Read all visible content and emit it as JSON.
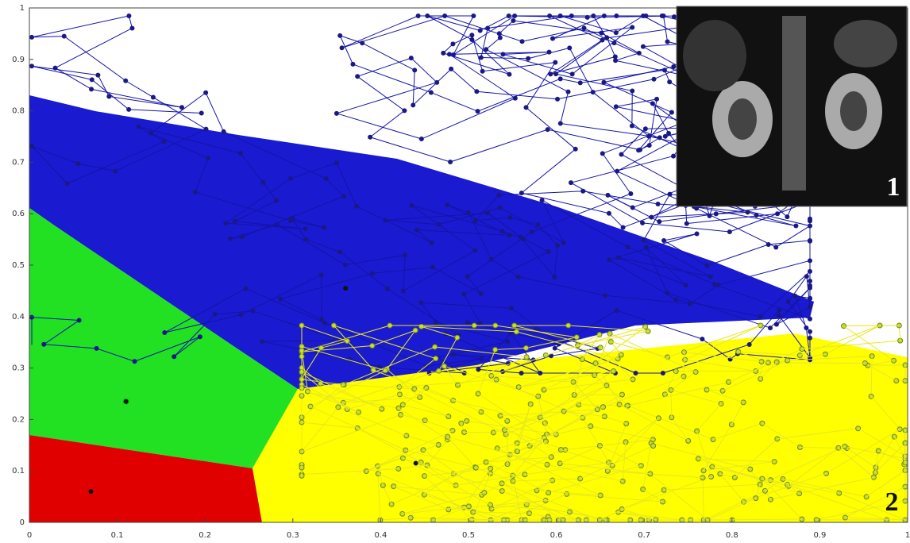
{
  "chart_data": {
    "type": "scatter",
    "xlim": [
      0,
      1
    ],
    "ylim": [
      0,
      1
    ],
    "xticks": [
      0,
      0.1,
      0.2,
      0.3,
      0.4,
      0.5,
      0.6,
      0.7,
      0.8,
      0.9,
      1
    ],
    "yticks": [
      0,
      0.1,
      0.2,
      0.3,
      0.4,
      0.5,
      0.6,
      0.7,
      0.8,
      0.9,
      1
    ],
    "series": [
      {
        "color": "#e00000",
        "x": [
          0.07
        ],
        "values": [
          0.06
        ]
      },
      {
        "color": "#00d000",
        "x": [
          0.11
        ],
        "values": [
          0.235
        ]
      },
      {
        "color": "#1a1ad0",
        "x": [
          0.36
        ],
        "values": [
          0.455
        ]
      },
      {
        "color": "#ffff00",
        "x": [
          0.44
        ],
        "values": [
          0.115
        ]
      }
    ],
    "annotations": [
      "1",
      "2"
    ]
  }
}
